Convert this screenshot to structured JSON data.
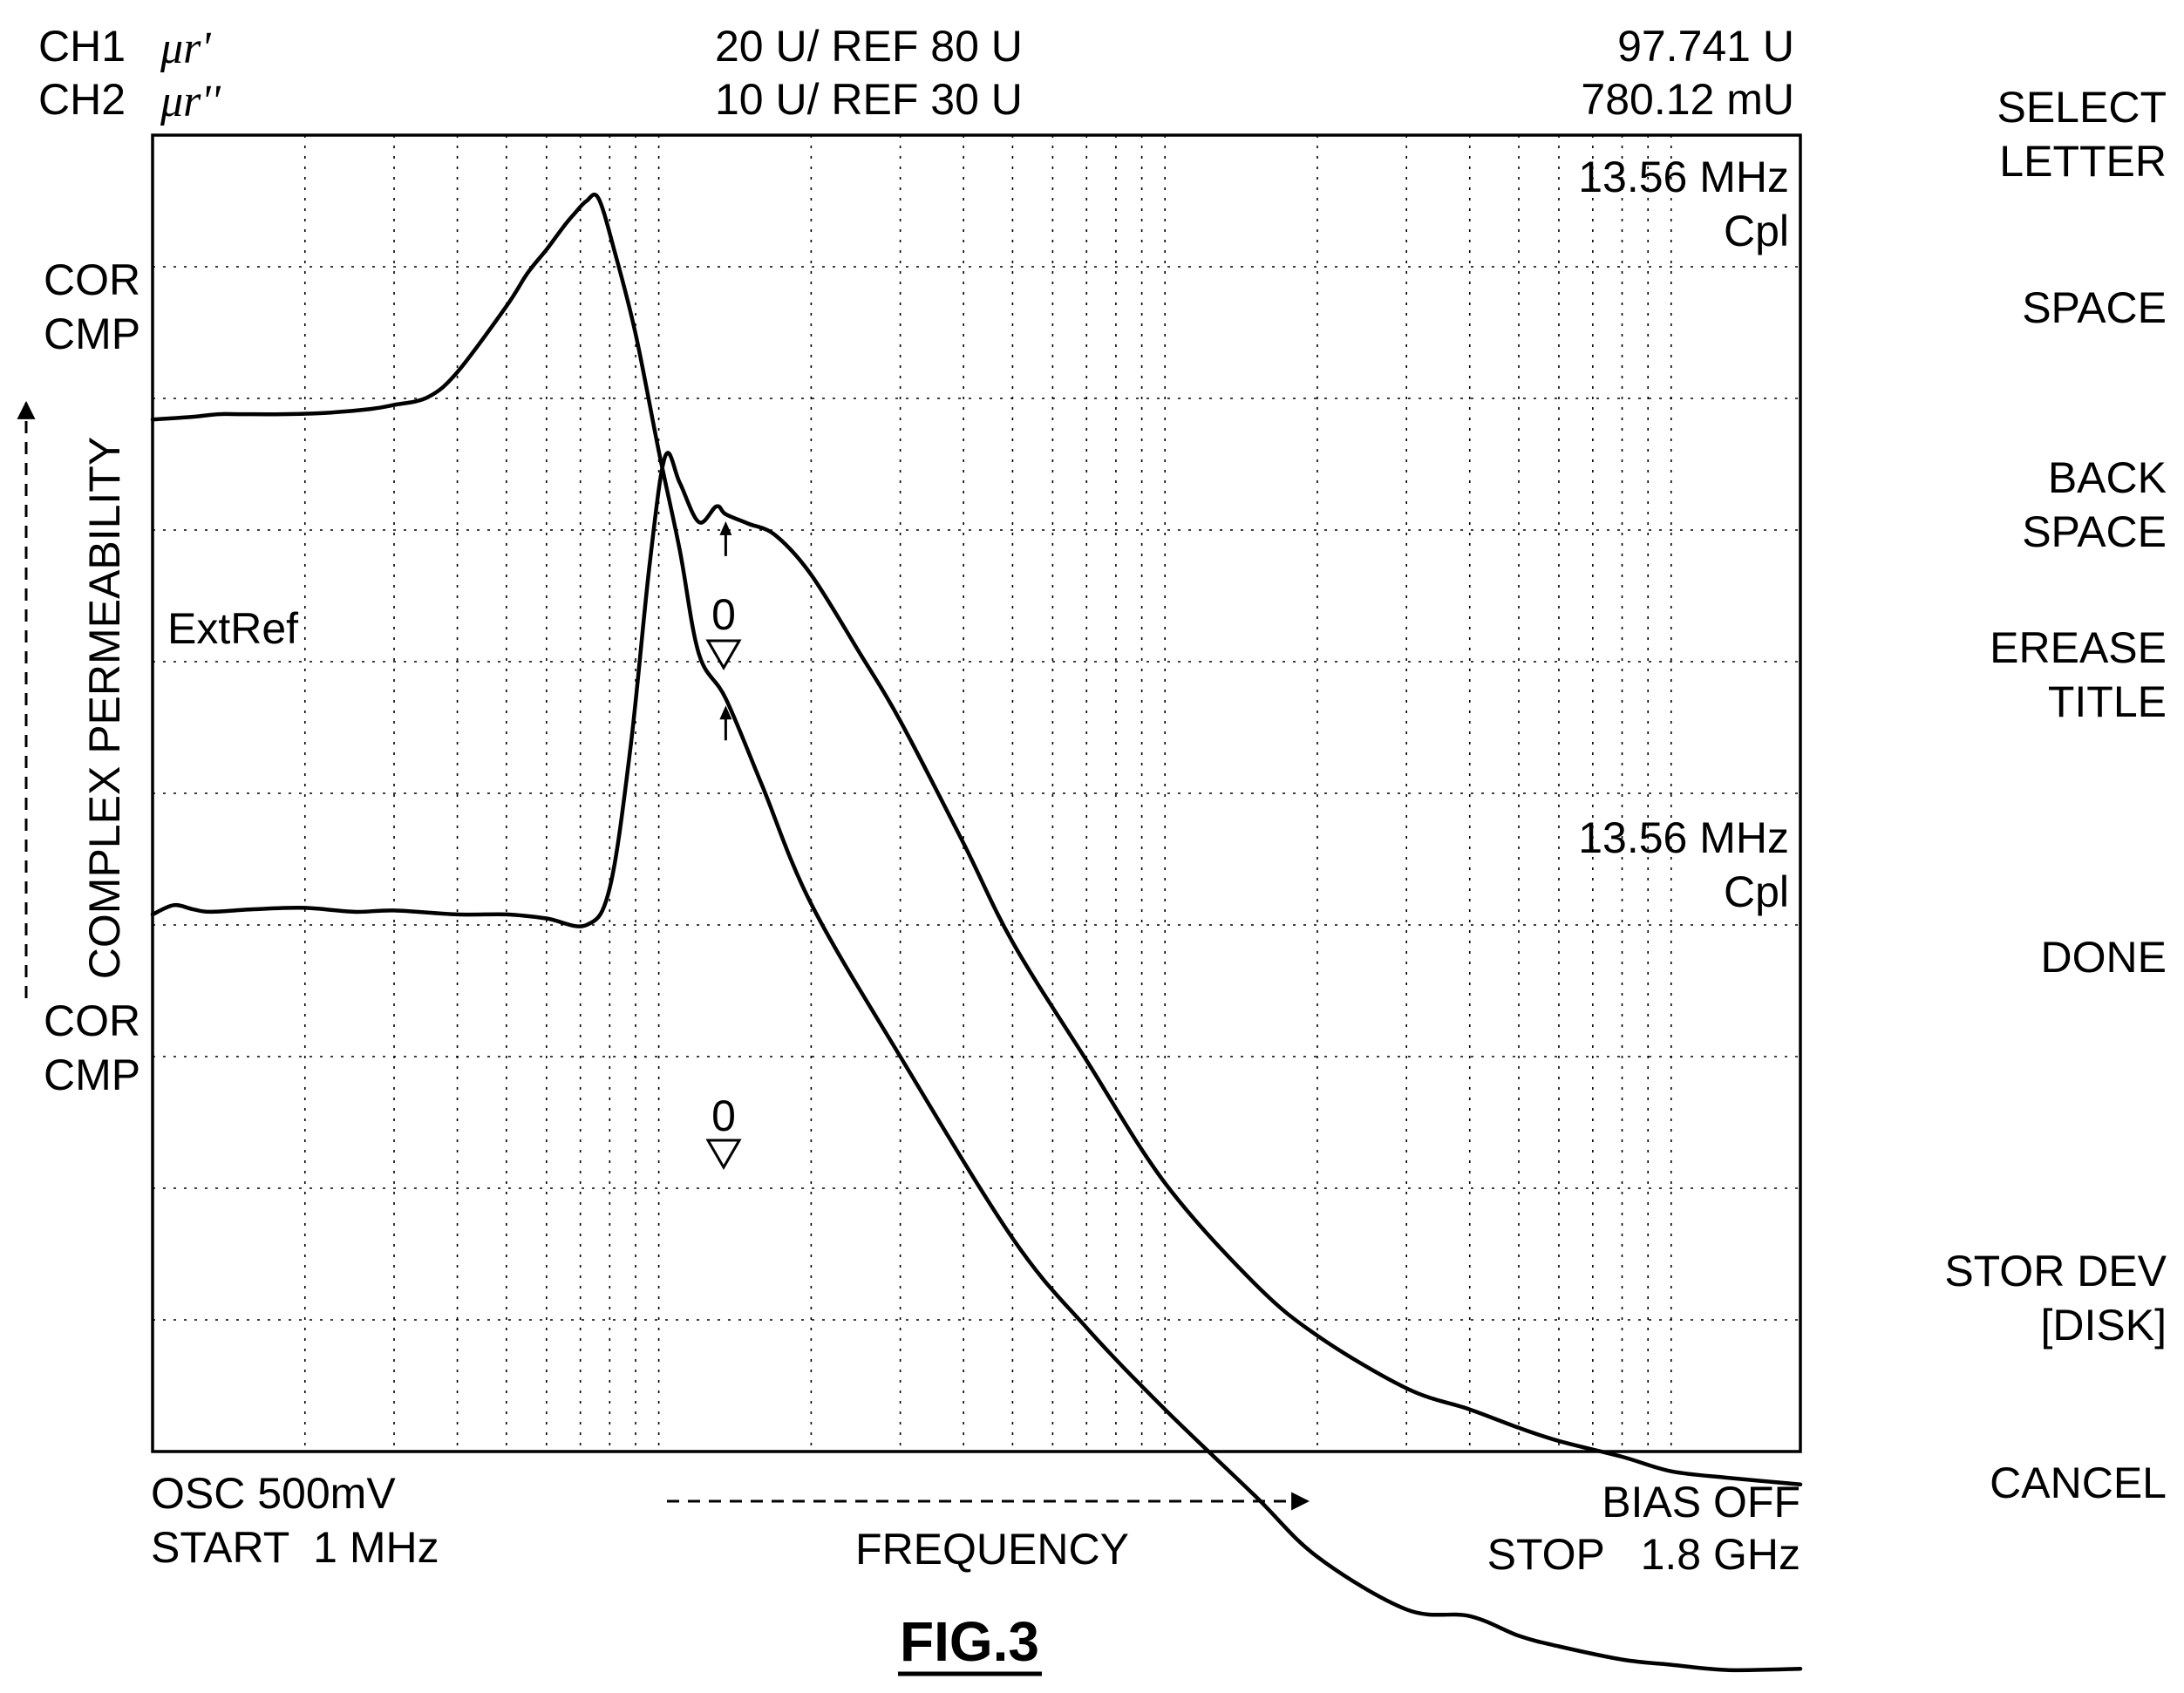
{
  "header": {
    "ch1_label": "CH1",
    "ch1_param": "μr'",
    "ch1_scale": "20 U/ REF 80 U",
    "ch1_value": "97.741 U",
    "ch2_label": "CH2",
    "ch2_param": "μr''",
    "ch2_scale": "10 U/ REF 30 U",
    "ch2_value": "780.12 mU"
  },
  "left_labels": {
    "cor1": "COR",
    "cmp1": "CMP",
    "cor2": "COR",
    "cmp2": "CMP",
    "y_axis": "COMPLEX PERMEABILITY"
  },
  "plot_labels": {
    "extref": "ExtRef",
    "marker1_freq": "13.56 MHz",
    "marker1_cpl": "Cpl",
    "marker2_freq": "13.56 MHz",
    "marker2_cpl": "Cpl",
    "ref_marker_1": "0",
    "ref_marker_2": "0"
  },
  "footer": {
    "osc": "OSC 500mV",
    "start": "START  1 MHz",
    "x_axis": "FREQUENCY",
    "bias": "BIAS OFF",
    "stop": "STOP   1.8 GHz"
  },
  "softkeys": [
    {
      "line1": "SELECT",
      "line2": "LETTER"
    },
    {
      "line1": "SPACE",
      "line2": ""
    },
    {
      "line1": "BACK",
      "line2": "SPACE"
    },
    {
      "line1": "EREASE",
      "line2": "TITLE"
    },
    {
      "line1": "DONE",
      "line2": ""
    },
    {
      "line1": "STOR DEV",
      "line2": "[DISK]"
    },
    {
      "line1": "CANCEL",
      "line2": ""
    }
  ],
  "figure_caption": "FIG.3",
  "chart_data": {
    "type": "line",
    "xlabel": "FREQUENCY",
    "ylabel": "COMPLEX PERMEABILITY",
    "x_scale": "log",
    "xlim": [
      1,
      1800
    ],
    "x_unit": "MHz",
    "ylim_divisions": [
      0,
      10
    ],
    "grid": true,
    "marker_frequency_mhz": 13.56,
    "series": [
      {
        "name": "μr'",
        "scale": "20 U/ REF 80 U",
        "marker_value": "97.741 U",
        "x": [
          1,
          1.1,
          1.2,
          1.3,
          1.6,
          2,
          2.5,
          3,
          4,
          5,
          6,
          7.2,
          8,
          8.8,
          9.6,
          10.3,
          11,
          12,
          13,
          13.56,
          15,
          17,
          20,
          25,
          30,
          40,
          50,
          70,
          100,
          150,
          200,
          300,
          400,
          500,
          600,
          800,
          1000,
          1300,
          1800
        ],
        "divisions": [
          4.08,
          4.15,
          4.12,
          4.1,
          4.12,
          4.13,
          4.1,
          4.11,
          4.08,
          4.08,
          4.05,
          4.0,
          4.28,
          5.36,
          6.75,
          7.56,
          7.36,
          7.06,
          7.18,
          7.12,
          7.05,
          6.96,
          6.66,
          6.06,
          5.55,
          4.62,
          3.87,
          2.97,
          2.04,
          1.28,
          0.88,
          0.48,
          0.32,
          0.18,
          0.08,
          -0.04,
          -0.15,
          -0.2,
          -0.25
        ]
      },
      {
        "name": "μr''",
        "scale": "10 U/ REF 30 U",
        "marker_value": "780.12 mU",
        "x": [
          1,
          1.2,
          1.35,
          1.5,
          1.8,
          2.2,
          2.7,
          3,
          3.5,
          4,
          5,
          5.5,
          6,
          6.5,
          6.8,
          7.2,
          7.6,
          8.2,
          9,
          10,
          11,
          12,
          13.56,
          16,
          20,
          30,
          50,
          70,
          100,
          150,
          200,
          300,
          400,
          500,
          600,
          800,
          1000,
          1300,
          1800
        ],
        "divisions": [
          7.84,
          7.86,
          7.88,
          7.88,
          7.88,
          7.89,
          7.92,
          7.95,
          8.01,
          8.2,
          8.7,
          8.95,
          9.13,
          9.31,
          9.4,
          9.5,
          9.52,
          9.1,
          8.49,
          7.6,
          6.85,
          6.06,
          5.72,
          5.06,
          4.16,
          3.0,
          1.62,
          0.94,
          0.32,
          -0.33,
          -0.8,
          -1.2,
          -1.25,
          -1.4,
          -1.48,
          -1.58,
          -1.62,
          -1.66,
          -1.65
        ]
      }
    ]
  }
}
